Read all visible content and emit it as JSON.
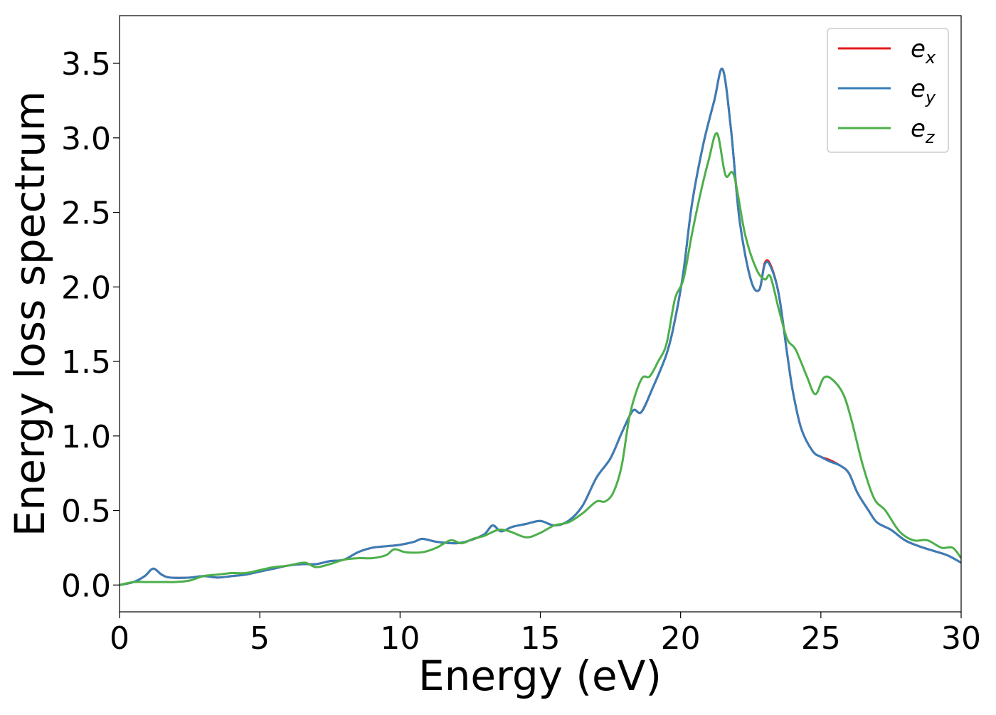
{
  "chart_data": {
    "type": "line",
    "title": "",
    "xlabel": "Energy (eV)",
    "ylabel": "Energy loss spectrum",
    "xlim": [
      0,
      30
    ],
    "ylim": [
      -0.18,
      3.82
    ],
    "xticks": [
      0,
      5,
      10,
      15,
      20,
      25,
      30
    ],
    "xtick_labels": [
      "0",
      "5",
      "10",
      "15",
      "20",
      "25",
      "30"
    ],
    "yticks": [
      0.0,
      0.5,
      1.0,
      1.5,
      2.0,
      2.5,
      3.0,
      3.5
    ],
    "ytick_labels": [
      "0.0",
      "0.5",
      "1.0",
      "1.5",
      "2.0",
      "2.5",
      "3.0",
      "3.5"
    ],
    "grid": false,
    "legend_position": "top-right",
    "series": [
      {
        "name": "e_x",
        "legend_base": "e",
        "legend_sub": "x",
        "color": "#e41a1c",
        "x": [
          0,
          0.5,
          0.9,
          1.2,
          1.5,
          1.8,
          2.5,
          3.0,
          3.5,
          4.0,
          4.5,
          5.0,
          5.5,
          6.0,
          6.5,
          7.0,
          7.5,
          8.0,
          8.5,
          9.0,
          9.5,
          10.0,
          10.5,
          10.8,
          11.3,
          12.0,
          12.5,
          13.0,
          13.3,
          13.6,
          14.0,
          14.5,
          15.0,
          15.5,
          16.0,
          16.5,
          17.0,
          17.5,
          17.9,
          18.3,
          18.6,
          19.0,
          19.5,
          19.8,
          20.1,
          20.4,
          20.8,
          21.2,
          21.5,
          21.8,
          22.1,
          22.5,
          22.8,
          23.0,
          23.2,
          23.5,
          23.8,
          24.0,
          24.3,
          24.7,
          25.0,
          25.3,
          25.7,
          26.0,
          26.3,
          26.7,
          27.0,
          27.5,
          28.0,
          28.5,
          29.0,
          29.5,
          30.0
        ],
        "y": [
          0.0,
          0.02,
          0.06,
          0.11,
          0.07,
          0.05,
          0.05,
          0.06,
          0.05,
          0.06,
          0.07,
          0.09,
          0.11,
          0.13,
          0.14,
          0.14,
          0.16,
          0.17,
          0.22,
          0.25,
          0.26,
          0.27,
          0.29,
          0.31,
          0.29,
          0.28,
          0.3,
          0.34,
          0.4,
          0.36,
          0.39,
          0.41,
          0.43,
          0.4,
          0.43,
          0.53,
          0.72,
          0.85,
          1.02,
          1.17,
          1.16,
          1.32,
          1.55,
          1.78,
          2.1,
          2.55,
          2.95,
          3.25,
          3.46,
          3.05,
          2.45,
          2.05,
          1.98,
          2.16,
          2.15,
          1.95,
          1.55,
          1.3,
          1.05,
          0.9,
          0.86,
          0.84,
          0.8,
          0.75,
          0.62,
          0.5,
          0.42,
          0.37,
          0.3,
          0.26,
          0.23,
          0.2,
          0.15
        ]
      },
      {
        "name": "e_y",
        "legend_base": "e",
        "legend_sub": "y",
        "color": "#377eb8",
        "x": [
          0,
          0.5,
          0.9,
          1.2,
          1.5,
          1.8,
          2.5,
          3.0,
          3.5,
          4.0,
          4.5,
          5.0,
          5.5,
          6.0,
          6.5,
          7.0,
          7.5,
          8.0,
          8.5,
          9.0,
          9.5,
          10.0,
          10.5,
          10.8,
          11.3,
          12.0,
          12.5,
          13.0,
          13.3,
          13.6,
          14.0,
          14.5,
          15.0,
          15.5,
          16.0,
          16.5,
          17.0,
          17.5,
          17.9,
          18.3,
          18.6,
          19.0,
          19.5,
          19.8,
          20.1,
          20.4,
          20.8,
          21.2,
          21.5,
          21.8,
          22.1,
          22.5,
          22.8,
          23.0,
          23.2,
          23.5,
          23.8,
          24.0,
          24.3,
          24.7,
          25.0,
          25.3,
          25.7,
          26.0,
          26.3,
          26.7,
          27.0,
          27.5,
          28.0,
          28.5,
          29.0,
          29.5,
          30.0
        ],
        "y": [
          0.0,
          0.02,
          0.06,
          0.11,
          0.07,
          0.05,
          0.05,
          0.06,
          0.05,
          0.06,
          0.07,
          0.09,
          0.11,
          0.13,
          0.14,
          0.14,
          0.16,
          0.17,
          0.22,
          0.25,
          0.26,
          0.27,
          0.29,
          0.31,
          0.29,
          0.28,
          0.3,
          0.34,
          0.4,
          0.36,
          0.39,
          0.41,
          0.43,
          0.4,
          0.43,
          0.53,
          0.72,
          0.85,
          1.02,
          1.17,
          1.16,
          1.32,
          1.55,
          1.78,
          2.1,
          2.55,
          2.95,
          3.25,
          3.46,
          3.05,
          2.45,
          2.05,
          1.98,
          2.15,
          2.14,
          1.95,
          1.55,
          1.3,
          1.05,
          0.9,
          0.86,
          0.83,
          0.8,
          0.75,
          0.62,
          0.5,
          0.42,
          0.37,
          0.3,
          0.26,
          0.23,
          0.2,
          0.15
        ]
      },
      {
        "name": "e_z",
        "legend_base": "e",
        "legend_sub": "z",
        "color": "#4daf4a",
        "x": [
          0,
          0.5,
          1.0,
          1.5,
          2.0,
          2.5,
          3.0,
          3.5,
          4.0,
          4.5,
          5.0,
          5.5,
          6.0,
          6.6,
          7.0,
          7.5,
          8.0,
          8.5,
          9.0,
          9.5,
          9.8,
          10.2,
          10.8,
          11.3,
          11.8,
          12.2,
          12.6,
          13.0,
          13.5,
          13.9,
          14.5,
          15.0,
          15.5,
          16.0,
          16.5,
          17.0,
          17.3,
          17.6,
          17.9,
          18.2,
          18.6,
          18.9,
          19.2,
          19.5,
          19.8,
          20.1,
          20.4,
          20.7,
          21.0,
          21.3,
          21.6,
          21.9,
          22.3,
          22.7,
          23.0,
          23.2,
          23.5,
          23.8,
          24.1,
          24.5,
          24.8,
          25.1,
          25.4,
          25.8,
          26.1,
          26.5,
          26.9,
          27.3,
          27.8,
          28.3,
          28.8,
          29.3,
          29.7,
          30.0
        ],
        "y": [
          0.0,
          0.02,
          0.02,
          0.02,
          0.02,
          0.03,
          0.06,
          0.07,
          0.08,
          0.08,
          0.1,
          0.12,
          0.13,
          0.15,
          0.12,
          0.14,
          0.17,
          0.18,
          0.18,
          0.2,
          0.24,
          0.22,
          0.22,
          0.25,
          0.3,
          0.28,
          0.31,
          0.33,
          0.37,
          0.36,
          0.32,
          0.35,
          0.4,
          0.42,
          0.48,
          0.56,
          0.56,
          0.62,
          0.8,
          1.15,
          1.38,
          1.4,
          1.5,
          1.62,
          1.92,
          2.05,
          2.35,
          2.62,
          2.85,
          3.03,
          2.75,
          2.75,
          2.35,
          2.12,
          2.05,
          2.07,
          1.85,
          1.65,
          1.58,
          1.4,
          1.28,
          1.39,
          1.38,
          1.28,
          1.1,
          0.8,
          0.58,
          0.5,
          0.36,
          0.3,
          0.3,
          0.25,
          0.25,
          0.18
        ]
      }
    ]
  }
}
